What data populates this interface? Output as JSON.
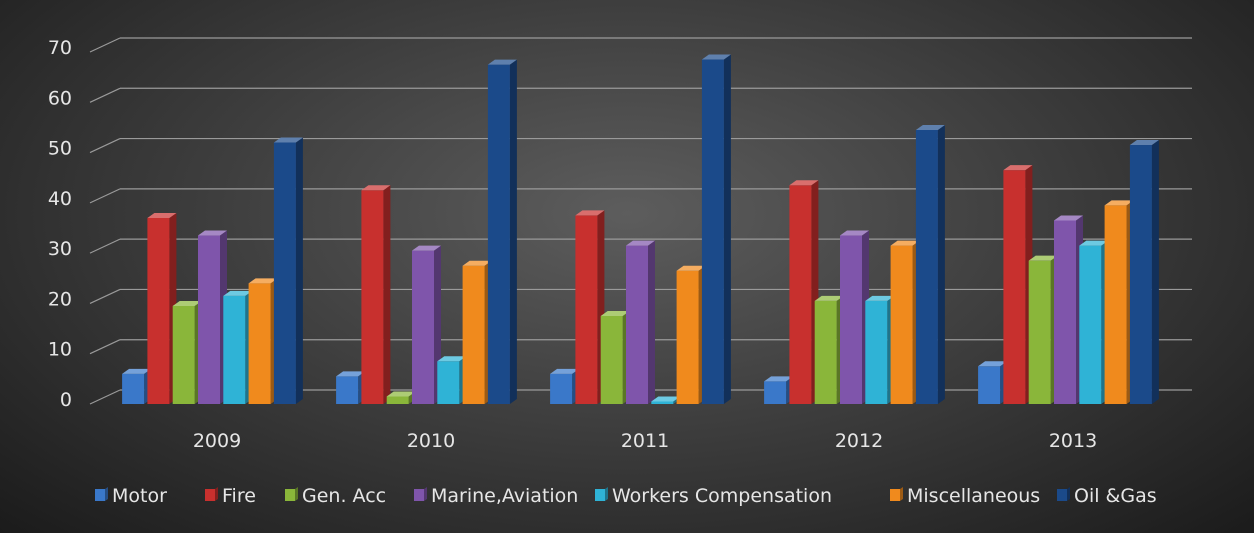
{
  "chart_data": {
    "type": "bar",
    "title": "",
    "xlabel": "",
    "ylabel": "",
    "categories": [
      "2009",
      "2010",
      "2011",
      "2012",
      "2013"
    ],
    "ylim": [
      0,
      70
    ],
    "yticks": [
      "0",
      "10",
      "20",
      "30",
      "40",
      "50",
      "60",
      "70"
    ],
    "grid": true,
    "legend_position": "bottom",
    "style": "3d-clustered-column",
    "series": [
      {
        "name": "Motor",
        "color": "#3a78c9",
        "values": [
          6,
          5.5,
          6,
          4.5,
          7.5
        ]
      },
      {
        "name": "Fire",
        "color": "#c8302e",
        "values": [
          37,
          42.5,
          37.5,
          43.5,
          46.5
        ]
      },
      {
        "name": "Gen. Acc",
        "color": "#8ab63a",
        "values": [
          19.5,
          1.5,
          17.5,
          20.5,
          28.5
        ]
      },
      {
        "name": "Marine,Aviation",
        "color": "#7f55ab",
        "values": [
          33.5,
          30.5,
          31.5,
          33.5,
          36.5
        ]
      },
      {
        "name": "Workers Compensation",
        "color": "#2fb3d6",
        "values": [
          21.5,
          8.5,
          0.5,
          20.5,
          31.5
        ]
      },
      {
        "name": "Miscellaneous",
        "color": "#f08a1d",
        "values": [
          24,
          27.5,
          26.5,
          31.5,
          39.5
        ]
      },
      {
        "name": "Oil &Gas",
        "color": "#1b4a8a",
        "values": [
          52,
          67.5,
          68.5,
          54.5,
          51.5
        ]
      }
    ]
  }
}
